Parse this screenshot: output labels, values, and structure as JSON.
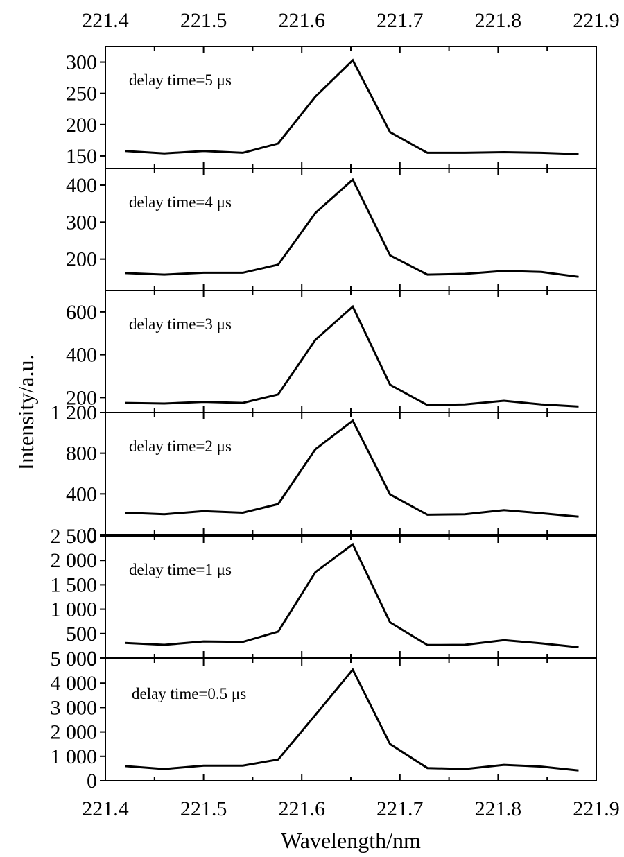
{
  "chart_data": {
    "type": "line",
    "xlabel": "Wavelength/nm",
    "ylabel": "Intensity/a.u.",
    "xlim": [
      221.4,
      221.9
    ],
    "x_ticks": [
      "221.4",
      "221.5",
      "221.6",
      "221.7",
      "221.8",
      "221.9"
    ],
    "x": [
      221.42,
      221.46,
      221.5,
      221.54,
      221.576,
      221.614,
      221.652,
      221.69,
      221.728,
      221.766,
      221.806,
      221.844,
      221.882
    ],
    "panels": [
      {
        "label": "delay time=5 μs",
        "ylim": [
          130,
          325
        ],
        "y_ticks": [
          {
            "value": 150,
            "text": "150"
          },
          {
            "value": 200,
            "text": "200"
          },
          {
            "value": 250,
            "text": "250"
          },
          {
            "value": 300,
            "text": "300"
          }
        ],
        "values": [
          158,
          154,
          158,
          155,
          170,
          245,
          303,
          188,
          155,
          155,
          156,
          155,
          153
        ]
      },
      {
        "label": "delay time=4 μs",
        "ylim": [
          115,
          445
        ],
        "y_ticks": [
          {
            "value": 200,
            "text": "200"
          },
          {
            "value": 300,
            "text": "300"
          },
          {
            "value": 400,
            "text": "400"
          }
        ],
        "values": [
          162,
          158,
          163,
          163,
          185,
          325,
          415,
          210,
          158,
          160,
          168,
          165,
          152
        ]
      },
      {
        "label": "delay time=3 μs",
        "ylim": [
          130,
          700
        ],
        "y_ticks": [
          {
            "value": 200,
            "text": "200"
          },
          {
            "value": 400,
            "text": "400"
          },
          {
            "value": 600,
            "text": "600"
          }
        ],
        "values": [
          175,
          172,
          180,
          175,
          215,
          470,
          625,
          260,
          165,
          168,
          185,
          168,
          158
        ]
      },
      {
        "label": "delay time=2 μs",
        "ylim": [
          0,
          1200
        ],
        "y_ticks": [
          {
            "value": 0,
            "text": "0"
          },
          {
            "value": 400,
            "text": "400"
          },
          {
            "value": 800,
            "text": "800"
          },
          {
            "value": 1200,
            "text": "1 200"
          }
        ],
        "values": [
          215,
          200,
          230,
          215,
          300,
          840,
          1120,
          395,
          195,
          200,
          240,
          210,
          175
        ]
      },
      {
        "label": "delay time=1 μs",
        "ylim": [
          0,
          2500
        ],
        "y_ticks": [
          {
            "value": 0,
            "text": "0"
          },
          {
            "value": 500,
            "text": "500"
          },
          {
            "value": 1000,
            "text": "1 000"
          },
          {
            "value": 1500,
            "text": "1 500"
          },
          {
            "value": 2000,
            "text": "2 000"
          },
          {
            "value": 2500,
            "text": "2 500"
          }
        ],
        "values": [
          310,
          270,
          340,
          330,
          540,
          1760,
          2330,
          730,
          265,
          270,
          365,
          300,
          220
        ]
      },
      {
        "label": "delay time=0.5 μs",
        "ylim": [
          0,
          5000
        ],
        "y_ticks": [
          {
            "value": 0,
            "text": "0"
          },
          {
            "value": 1000,
            "text": "1 000"
          },
          {
            "value": 2000,
            "text": "2 000"
          },
          {
            "value": 3000,
            "text": "3 000"
          },
          {
            "value": 4000,
            "text": "4 000"
          },
          {
            "value": 5000,
            "text": "5 000"
          }
        ],
        "values": [
          600,
          480,
          620,
          620,
          870,
          2700,
          4550,
          1500,
          520,
          480,
          650,
          580,
          420
        ]
      }
    ]
  }
}
